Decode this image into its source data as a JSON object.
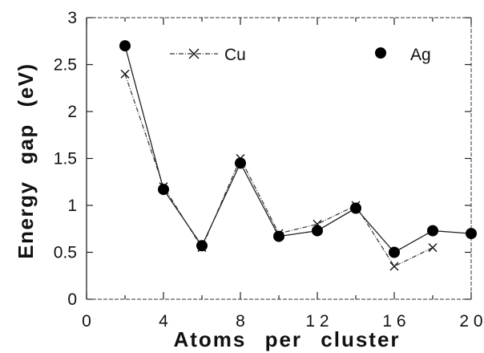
{
  "chart_data": {
    "type": "line",
    "xlabel": "Atoms per cluster",
    "ylabel": "Energy gap (eV)",
    "xlim": [
      0,
      20
    ],
    "ylim": [
      0,
      3
    ],
    "xticks": [
      0,
      4,
      8,
      12,
      16,
      20
    ],
    "xtick_labels": [
      "0",
      "4",
      "8",
      "1 2",
      "1 6",
      "2 0"
    ],
    "yticks": [
      0,
      0.5,
      1,
      1.5,
      2,
      2.5,
      3
    ],
    "ytick_labels": [
      "0",
      "0.5",
      "1",
      "1.5",
      "2",
      "2.5",
      "3"
    ],
    "grid": false,
    "legend_position": "top",
    "series": [
      {
        "name": "Cu",
        "marker": "x",
        "x": [
          2,
          4,
          6,
          8,
          10,
          12,
          14,
          16,
          18
        ],
        "y": [
          2.4,
          1.2,
          0.55,
          1.5,
          0.7,
          0.8,
          1.0,
          0.35,
          0.55
        ]
      },
      {
        "name": "Ag",
        "marker": "filled-circle",
        "x": [
          2,
          4,
          6,
          8,
          10,
          12,
          14,
          16,
          18,
          20
        ],
        "y": [
          2.7,
          1.17,
          0.57,
          1.45,
          0.67,
          0.73,
          0.97,
          0.5,
          0.73,
          0.7
        ]
      }
    ]
  }
}
